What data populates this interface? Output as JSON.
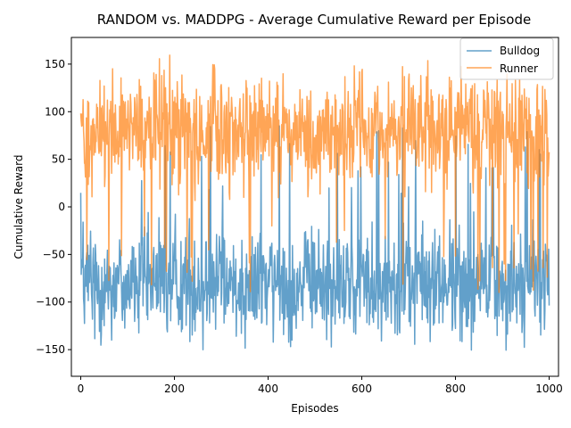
{
  "chart_data": {
    "type": "line",
    "title": "RANDOM vs. MADDPG - Average Cumulative Reward per Episode",
    "xlabel": "Episodes",
    "ylabel": "Cumulative Reward",
    "xlim": [
      -20,
      1020
    ],
    "ylim": [
      -178,
      178
    ],
    "xticks": [
      0,
      200,
      400,
      600,
      800,
      1000
    ],
    "yticks": [
      -150,
      -100,
      -50,
      0,
      50,
      100,
      150
    ],
    "xtick_labels": [
      "0",
      "200",
      "400",
      "600",
      "800",
      "1000"
    ],
    "ytick_labels": [
      "−150",
      "−100",
      "−50",
      "0",
      "50",
      "100",
      "150"
    ],
    "legend_position": "top-right",
    "episodes": 1000,
    "series": [
      {
        "name": "Bulldog",
        "color": "#1f77b4",
        "alpha": 0.7,
        "mean": -80,
        "typical_range": [
          -162,
          -5
        ],
        "occasional_spikes_to": 90
      },
      {
        "name": "Runner",
        "color": "#ff7f0e",
        "alpha": 0.7,
        "mean": 80,
        "typical_range": [
          5,
          162
        ],
        "occasional_dips_to": -90
      }
    ]
  }
}
